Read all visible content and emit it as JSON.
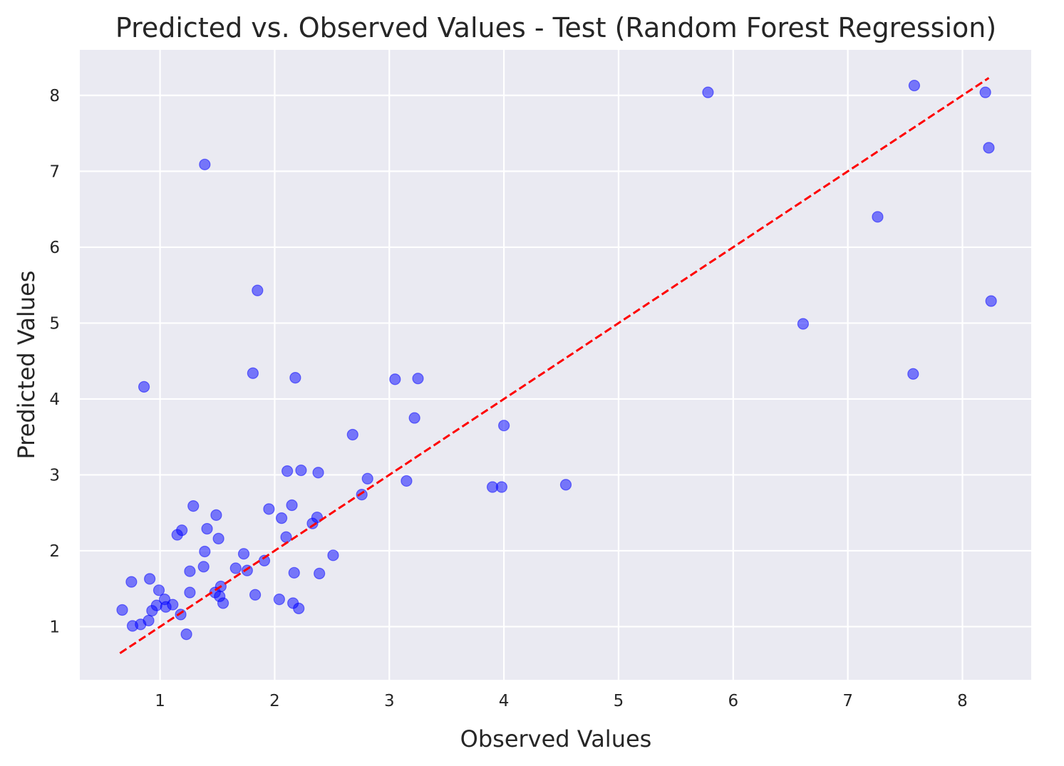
{
  "chart_data": {
    "type": "scatter",
    "title": "Predicted vs. Observed Values - Test (Random Forest Regression)",
    "xlabel": "Observed Values",
    "ylabel": "Predicted Values",
    "xlim": [
      0.3,
      8.6
    ],
    "ylim": [
      0.3,
      8.6
    ],
    "xticks": [
      1,
      2,
      3,
      4,
      5,
      6,
      7,
      8
    ],
    "yticks": [
      1,
      2,
      3,
      4,
      5,
      6,
      7,
      8
    ],
    "grid": true,
    "background_color": "#eaeaf2",
    "grid_color": "#ffffff",
    "point_color": "#0000ff",
    "point_alpha": 0.5,
    "reference_line": {
      "x": [
        0.65,
        8.23
      ],
      "y": [
        0.65,
        8.23
      ],
      "color": "#ff0000",
      "style": "dashed"
    },
    "points": [
      {
        "x": 0.67,
        "y": 1.22
      },
      {
        "x": 0.75,
        "y": 1.59
      },
      {
        "x": 0.76,
        "y": 1.01
      },
      {
        "x": 0.83,
        "y": 1.03
      },
      {
        "x": 0.86,
        "y": 4.16
      },
      {
        "x": 0.9,
        "y": 1.08
      },
      {
        "x": 0.91,
        "y": 1.63
      },
      {
        "x": 0.93,
        "y": 1.21
      },
      {
        "x": 0.97,
        "y": 1.28
      },
      {
        "x": 0.99,
        "y": 1.48
      },
      {
        "x": 1.04,
        "y": 1.36
      },
      {
        "x": 1.05,
        "y": 1.26
      },
      {
        "x": 1.11,
        "y": 1.29
      },
      {
        "x": 1.15,
        "y": 2.21
      },
      {
        "x": 1.18,
        "y": 1.16
      },
      {
        "x": 1.19,
        "y": 2.27
      },
      {
        "x": 1.23,
        "y": 0.9
      },
      {
        "x": 1.26,
        "y": 1.45
      },
      {
        "x": 1.26,
        "y": 1.73
      },
      {
        "x": 1.29,
        "y": 2.59
      },
      {
        "x": 1.38,
        "y": 1.79
      },
      {
        "x": 1.39,
        "y": 1.99
      },
      {
        "x": 1.39,
        "y": 7.09
      },
      {
        "x": 1.41,
        "y": 2.29
      },
      {
        "x": 1.48,
        "y": 1.45
      },
      {
        "x": 1.49,
        "y": 2.47
      },
      {
        "x": 1.51,
        "y": 2.16
      },
      {
        "x": 1.52,
        "y": 1.4
      },
      {
        "x": 1.53,
        "y": 1.53
      },
      {
        "x": 1.55,
        "y": 1.31
      },
      {
        "x": 1.66,
        "y": 1.77
      },
      {
        "x": 1.73,
        "y": 1.96
      },
      {
        "x": 1.76,
        "y": 1.74
      },
      {
        "x": 1.81,
        "y": 4.34
      },
      {
        "x": 1.83,
        "y": 1.42
      },
      {
        "x": 1.85,
        "y": 5.43
      },
      {
        "x": 1.91,
        "y": 1.87
      },
      {
        "x": 1.95,
        "y": 2.55
      },
      {
        "x": 2.04,
        "y": 1.36
      },
      {
        "x": 2.06,
        "y": 2.43
      },
      {
        "x": 2.1,
        "y": 2.18
      },
      {
        "x": 2.11,
        "y": 3.05
      },
      {
        "x": 2.15,
        "y": 2.6
      },
      {
        "x": 2.16,
        "y": 1.31
      },
      {
        "x": 2.17,
        "y": 1.71
      },
      {
        "x": 2.18,
        "y": 4.28
      },
      {
        "x": 2.21,
        "y": 1.24
      },
      {
        "x": 2.23,
        "y": 3.06
      },
      {
        "x": 2.33,
        "y": 2.36
      },
      {
        "x": 2.37,
        "y": 2.44
      },
      {
        "x": 2.38,
        "y": 3.03
      },
      {
        "x": 2.39,
        "y": 1.7
      },
      {
        "x": 2.51,
        "y": 1.94
      },
      {
        "x": 2.68,
        "y": 3.53
      },
      {
        "x": 2.76,
        "y": 2.74
      },
      {
        "x": 2.81,
        "y": 2.95
      },
      {
        "x": 3.05,
        "y": 4.26
      },
      {
        "x": 3.15,
        "y": 2.92
      },
      {
        "x": 3.22,
        "y": 3.75
      },
      {
        "x": 3.25,
        "y": 4.27
      },
      {
        "x": 3.9,
        "y": 2.84
      },
      {
        "x": 3.98,
        "y": 2.84
      },
      {
        "x": 4.0,
        "y": 3.65
      },
      {
        "x": 4.54,
        "y": 2.87
      },
      {
        "x": 5.78,
        "y": 8.04
      },
      {
        "x": 6.61,
        "y": 4.99
      },
      {
        "x": 7.26,
        "y": 6.4
      },
      {
        "x": 7.57,
        "y": 4.33
      },
      {
        "x": 7.58,
        "y": 8.13
      },
      {
        "x": 8.2,
        "y": 8.04
      },
      {
        "x": 8.23,
        "y": 7.31
      },
      {
        "x": 8.25,
        "y": 5.29
      }
    ]
  }
}
